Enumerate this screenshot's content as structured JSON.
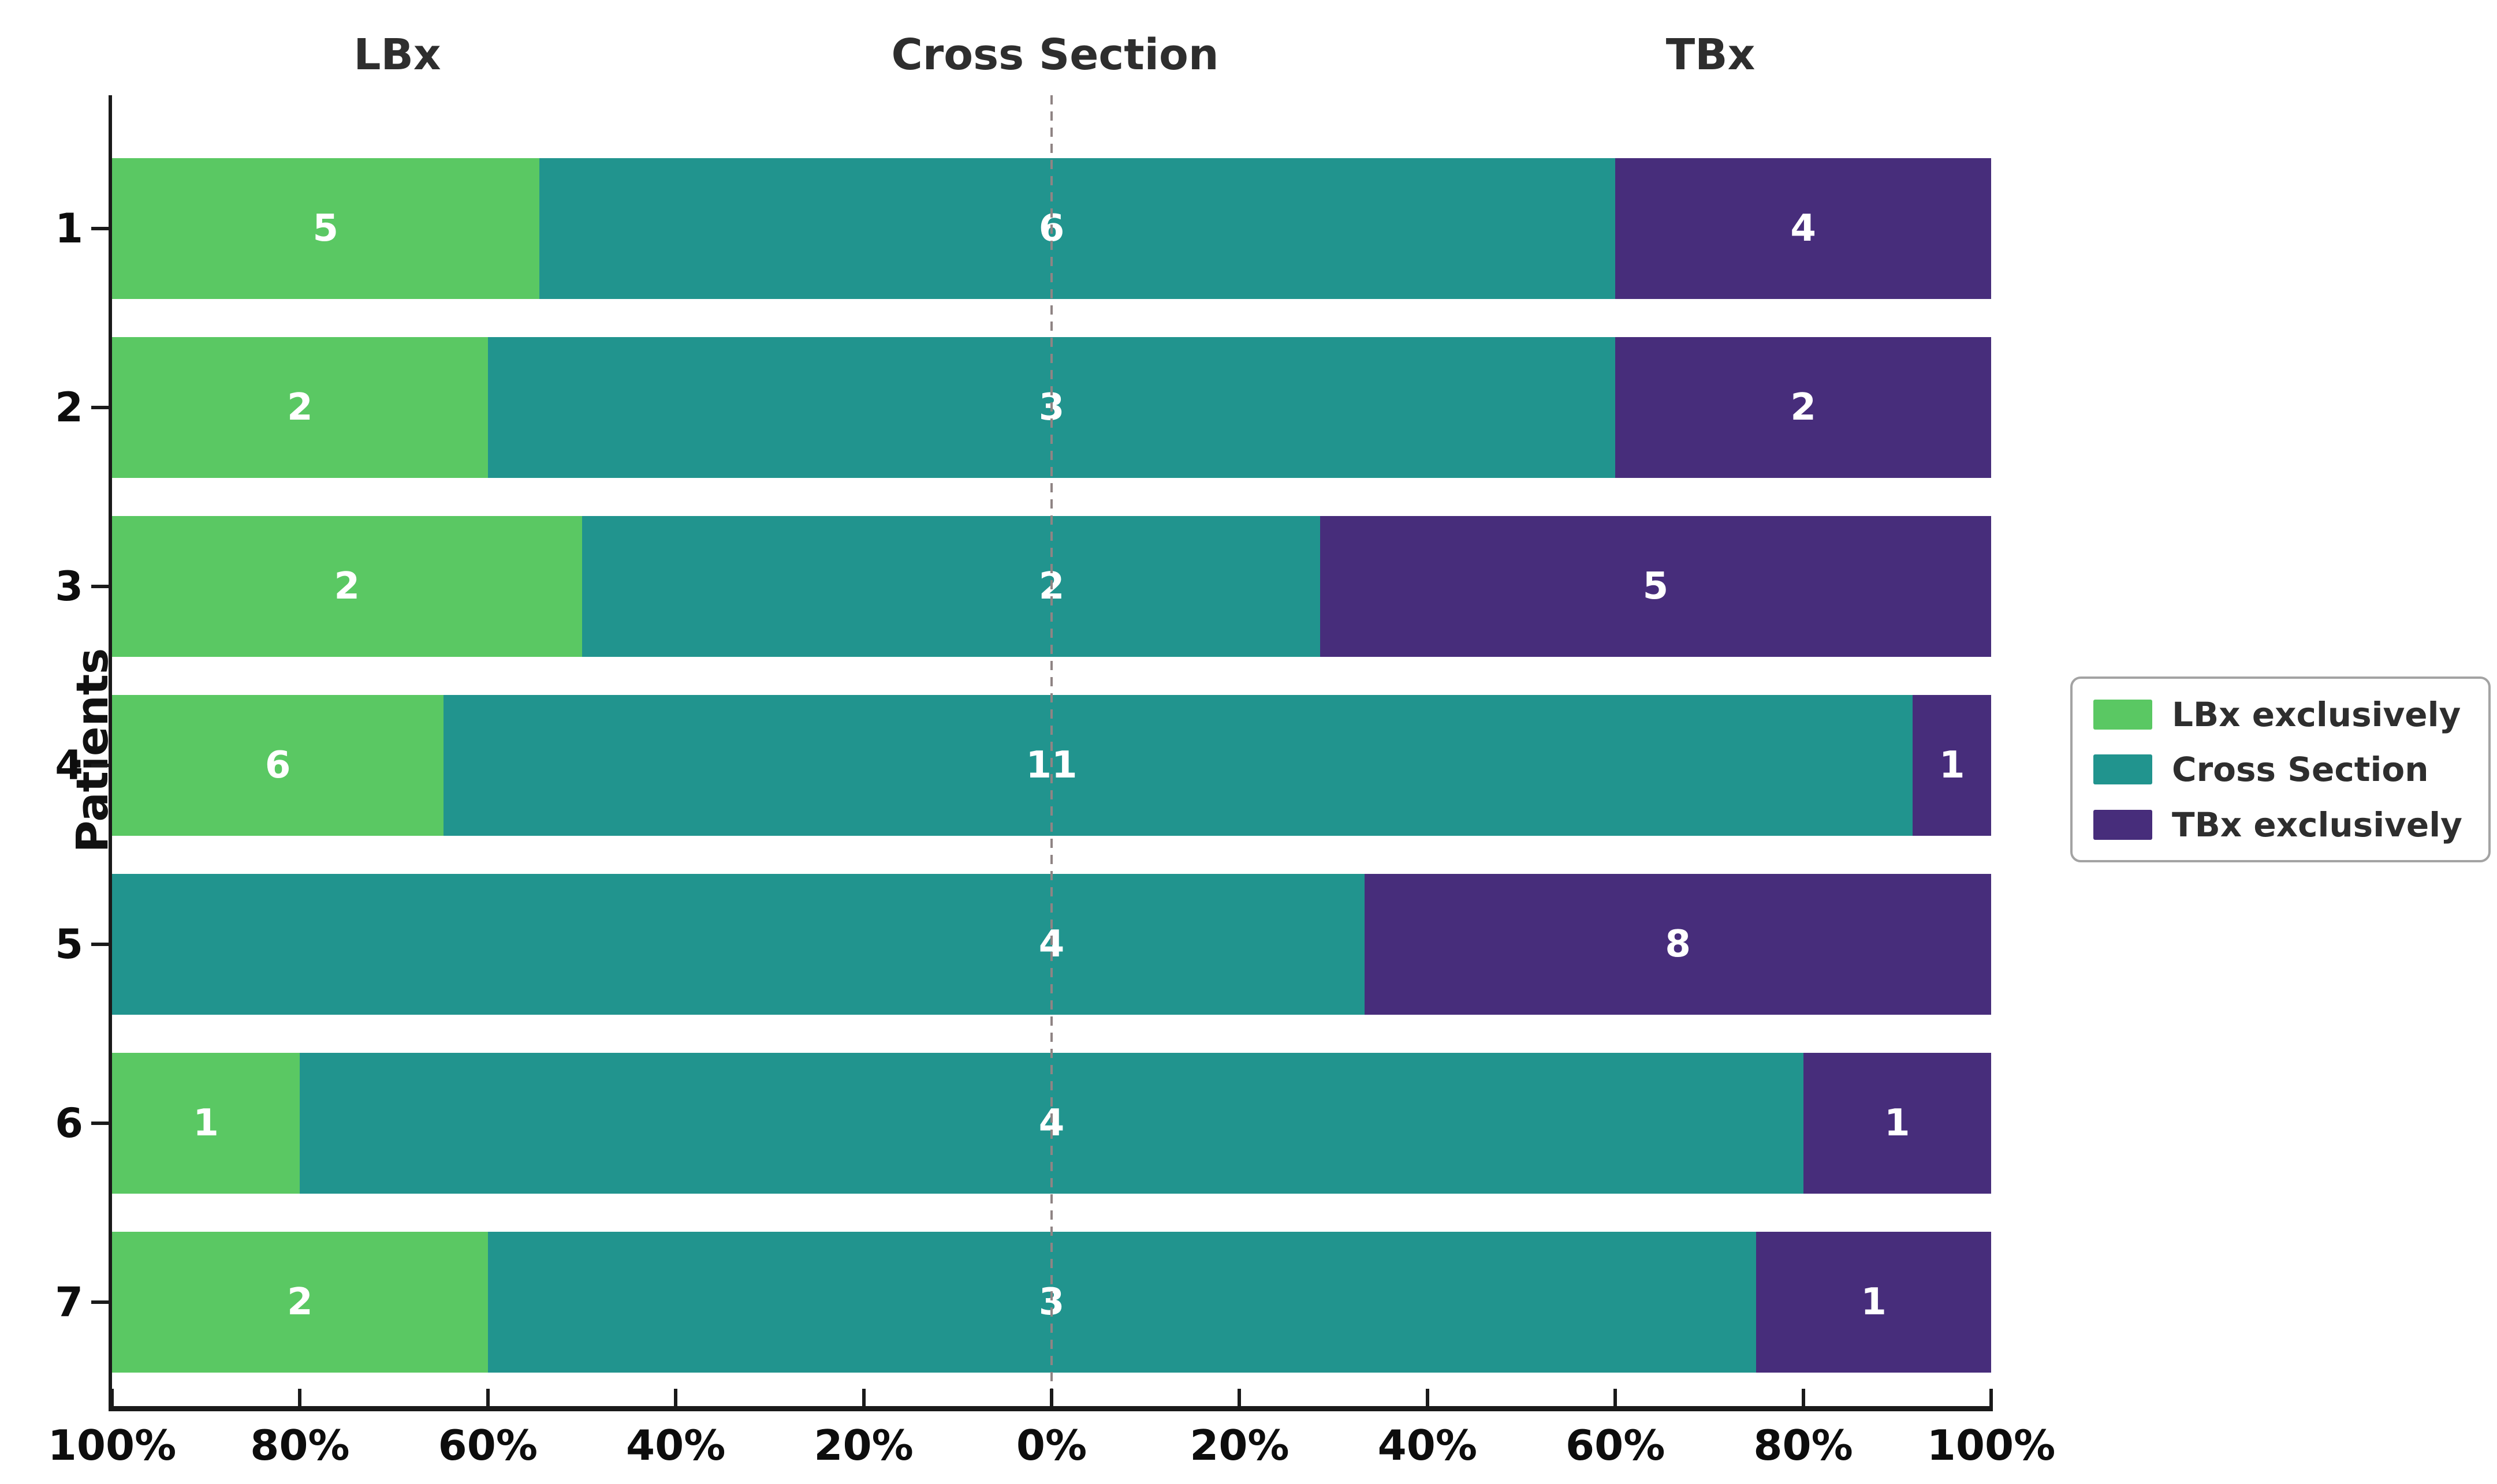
{
  "chart_data": {
    "type": "bar",
    "variant": "horizontal-diverging-stacked",
    "headers": {
      "left": "LBx",
      "center": "Cross Section",
      "right": "TBx"
    },
    "ylabel": "Patients",
    "categories": [
      "1",
      "2",
      "3",
      "4",
      "5",
      "6",
      "7"
    ],
    "series": [
      {
        "name": "LBx exclusively",
        "key": "lbx",
        "color": "#5ac863",
        "values": [
          5,
          2,
          2,
          6,
          0,
          1,
          2
        ]
      },
      {
        "name": "Cross Section",
        "key": "cross",
        "color": "#21948e",
        "values": [
          6,
          3,
          2,
          11,
          4,
          4,
          3
        ]
      },
      {
        "name": "TBx exclusively",
        "key": "tbx",
        "color": "#472d7b",
        "values": [
          4,
          2,
          5,
          1,
          8,
          1,
          1
        ]
      }
    ],
    "x_axis": {
      "tick_labels": [
        "100%",
        "80%",
        "60%",
        "40%",
        "20%",
        "0%",
        "20%",
        "40%",
        "60%",
        "80%",
        "100%"
      ]
    },
    "layout_rule": "left half width = LBx/(LBx+Cross); right half teal width = Cross/(Cross+TBx); dashed zero line at center; segment count labels in white, Cross Section label on zero line",
    "legend": {
      "position": "center right"
    },
    "zero_line_style": "dashed",
    "colors": {
      "axis": "#1a1a1a",
      "tick_label": "#0d0d0d",
      "header": "#2e2e2e",
      "zero_line": "#8f8484",
      "bar_label": "#ffffff",
      "legend_border": "#a3a3a3"
    }
  }
}
